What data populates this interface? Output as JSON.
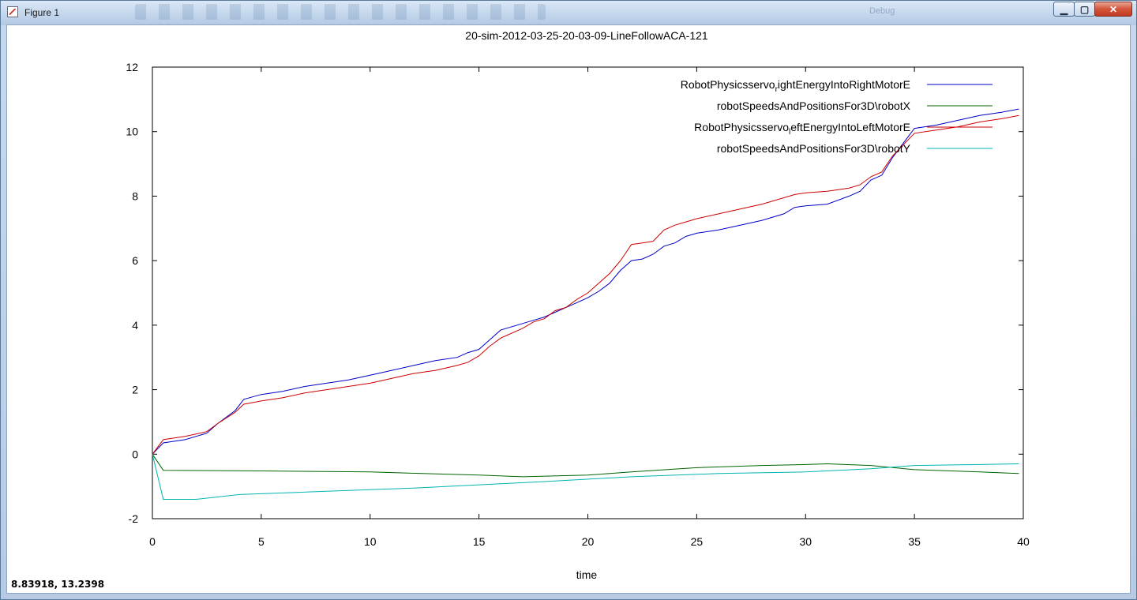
{
  "window": {
    "title": "Figure 1",
    "toolbar_hint": "Debug",
    "buttons": {
      "minimize": "▁",
      "maximize": "▢",
      "close": "✕"
    }
  },
  "status": {
    "coordinates": "8.83918,  13.2398"
  },
  "colors": {
    "series_right_energy": "#0000c8",
    "series_robot_x": "#006400",
    "series_left_energy": "#cc0000",
    "series_robot_y": "#00b4b4"
  },
  "chart_data": {
    "type": "line",
    "title": "20-sim-2012-03-25-20-03-09-LineFollowACA-121",
    "xlabel": "time",
    "ylabel": "",
    "xlim": [
      0,
      40
    ],
    "ylim": [
      -2,
      12
    ],
    "x_ticks": [
      "0",
      "5",
      "10",
      "15",
      "20",
      "25",
      "30",
      "35",
      "40"
    ],
    "y_ticks": [
      "-2",
      "0",
      "2",
      "4",
      "6",
      "8",
      "10",
      "12"
    ],
    "grid": false,
    "legend_position": "top-right",
    "series": [
      {
        "name": "RobotPhysicsservo",
        "sub": "r",
        "suffix": "ightEnergyIntoRightMotorE",
        "color": "#0000c8",
        "points": [
          [
            0,
            0
          ],
          [
            0.5,
            0.35
          ],
          [
            1.5,
            0.45
          ],
          [
            2.5,
            0.65
          ],
          [
            3,
            0.95
          ],
          [
            3.8,
            1.35
          ],
          [
            4.2,
            1.7
          ],
          [
            5,
            1.85
          ],
          [
            6,
            1.95
          ],
          [
            7,
            2.1
          ],
          [
            8,
            2.2
          ],
          [
            9,
            2.3
          ],
          [
            10,
            2.45
          ],
          [
            11,
            2.6
          ],
          [
            12,
            2.75
          ],
          [
            13,
            2.9
          ],
          [
            14,
            3.0
          ],
          [
            14.5,
            3.15
          ],
          [
            15,
            3.25
          ],
          [
            15.5,
            3.55
          ],
          [
            16,
            3.85
          ],
          [
            17,
            4.05
          ],
          [
            17.5,
            4.15
          ],
          [
            18,
            4.25
          ],
          [
            18.5,
            4.4
          ],
          [
            19,
            4.55
          ],
          [
            19.5,
            4.7
          ],
          [
            20,
            4.85
          ],
          [
            20.5,
            5.05
          ],
          [
            21,
            5.3
          ],
          [
            21.5,
            5.7
          ],
          [
            22,
            6.0
          ],
          [
            22.5,
            6.05
          ],
          [
            23,
            6.2
          ],
          [
            23.5,
            6.45
          ],
          [
            24,
            6.55
          ],
          [
            24.5,
            6.75
          ],
          [
            25,
            6.85
          ],
          [
            26,
            6.95
          ],
          [
            27,
            7.1
          ],
          [
            28,
            7.25
          ],
          [
            29,
            7.45
          ],
          [
            29.5,
            7.65
          ],
          [
            30,
            7.7
          ],
          [
            31,
            7.75
          ],
          [
            32,
            8.0
          ],
          [
            32.5,
            8.15
          ],
          [
            33,
            8.5
          ],
          [
            33.5,
            8.65
          ],
          [
            34,
            9.2
          ],
          [
            35,
            10.1
          ],
          [
            36,
            10.2
          ],
          [
            37,
            10.35
          ],
          [
            38,
            10.5
          ],
          [
            39,
            10.6
          ],
          [
            39.8,
            10.7
          ]
        ]
      },
      {
        "name": "robotSpeedsAndPositionsFor3D\\robotX",
        "sub": "",
        "suffix": "",
        "color": "#006400",
        "points": [
          [
            0,
            0
          ],
          [
            0.5,
            -0.5
          ],
          [
            5,
            -0.52
          ],
          [
            10,
            -0.55
          ],
          [
            15,
            -0.65
          ],
          [
            17,
            -0.7
          ],
          [
            20,
            -0.65
          ],
          [
            22,
            -0.55
          ],
          [
            25,
            -0.42
          ],
          [
            28,
            -0.35
          ],
          [
            30,
            -0.32
          ],
          [
            31,
            -0.3
          ],
          [
            33,
            -0.35
          ],
          [
            35,
            -0.48
          ],
          [
            38,
            -0.55
          ],
          [
            39.8,
            -0.6
          ]
        ]
      },
      {
        "name": "RobotPhysicsservo",
        "sub": "l",
        "suffix": "eftEnergyIntoLeftMotorE",
        "color": "#cc0000",
        "points": [
          [
            0,
            0
          ],
          [
            0.5,
            0.45
          ],
          [
            1.5,
            0.55
          ],
          [
            2.5,
            0.7
          ],
          [
            3,
            0.95
          ],
          [
            3.8,
            1.3
          ],
          [
            4.2,
            1.55
          ],
          [
            5,
            1.65
          ],
          [
            6,
            1.75
          ],
          [
            7,
            1.9
          ],
          [
            8,
            2.0
          ],
          [
            9,
            2.1
          ],
          [
            10,
            2.2
          ],
          [
            11,
            2.35
          ],
          [
            12,
            2.5
          ],
          [
            13,
            2.6
          ],
          [
            14,
            2.75
          ],
          [
            14.5,
            2.85
          ],
          [
            15,
            3.05
          ],
          [
            15.5,
            3.35
          ],
          [
            16,
            3.6
          ],
          [
            17,
            3.9
          ],
          [
            17.5,
            4.1
          ],
          [
            18,
            4.2
          ],
          [
            18.5,
            4.45
          ],
          [
            19,
            4.55
          ],
          [
            19.5,
            4.8
          ],
          [
            20,
            5.0
          ],
          [
            20.5,
            5.3
          ],
          [
            21,
            5.6
          ],
          [
            21.5,
            6.0
          ],
          [
            22,
            6.5
          ],
          [
            22.5,
            6.55
          ],
          [
            23,
            6.6
          ],
          [
            23.5,
            6.95
          ],
          [
            24,
            7.1
          ],
          [
            24.5,
            7.2
          ],
          [
            25,
            7.3
          ],
          [
            26,
            7.45
          ],
          [
            27,
            7.6
          ],
          [
            28,
            7.75
          ],
          [
            29,
            7.95
          ],
          [
            29.5,
            8.05
          ],
          [
            30,
            8.1
          ],
          [
            31,
            8.15
          ],
          [
            32,
            8.25
          ],
          [
            32.5,
            8.35
          ],
          [
            33,
            8.6
          ],
          [
            33.5,
            8.75
          ],
          [
            34,
            9.25
          ],
          [
            35,
            9.95
          ],
          [
            36,
            10.05
          ],
          [
            37,
            10.15
          ],
          [
            38,
            10.3
          ],
          [
            39,
            10.4
          ],
          [
            39.8,
            10.5
          ]
        ]
      },
      {
        "name": "robotSpeedsAndPositionsFor3D\\robotY",
        "sub": "",
        "suffix": "",
        "color": "#00b4b4",
        "points": [
          [
            0,
            0
          ],
          [
            0.5,
            -1.4
          ],
          [
            2,
            -1.4
          ],
          [
            4,
            -1.25
          ],
          [
            8,
            -1.15
          ],
          [
            12,
            -1.05
          ],
          [
            15,
            -0.95
          ],
          [
            18,
            -0.85
          ],
          [
            22,
            -0.7
          ],
          [
            26,
            -0.6
          ],
          [
            30,
            -0.55
          ],
          [
            33,
            -0.45
          ],
          [
            35,
            -0.35
          ],
          [
            38,
            -0.32
          ],
          [
            39.8,
            -0.3
          ]
        ]
      }
    ]
  }
}
